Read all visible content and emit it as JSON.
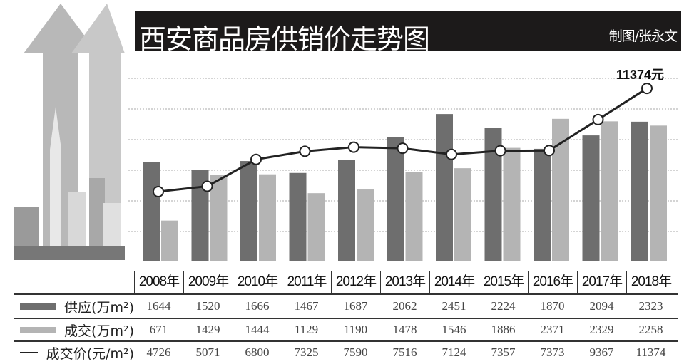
{
  "header": {
    "title": "西安商品房供销价走势图",
    "credit": "制图/张永文"
  },
  "chart_data": {
    "type": "bar",
    "title": "西安商品房供销价走势图",
    "categories": [
      "2008年",
      "2009年",
      "2010年",
      "2011年",
      "2012年",
      "2013年",
      "2014年",
      "2015年",
      "2016年",
      "2017年",
      "2018年"
    ],
    "series": [
      {
        "name": "供应(万m²)",
        "type": "bar",
        "color": "#6e6e6e",
        "values": [
          1644,
          1520,
          1666,
          1467,
          1687,
          2062,
          2451,
          2224,
          1870,
          2094,
          2323
        ]
      },
      {
        "name": "成交(万m²)",
        "type": "bar",
        "color": "#b4b4b4",
        "values": [
          671,
          1429,
          1444,
          1129,
          1190,
          1478,
          1546,
          1886,
          2371,
          2329,
          2258
        ]
      },
      {
        "name": "成交价(元/m²)",
        "type": "line",
        "color": "#222222",
        "values": [
          4726,
          5071,
          6800,
          7325,
          7590,
          7516,
          7124,
          7357,
          7373,
          9367,
          11374
        ]
      }
    ],
    "annotation": "11374元",
    "grid": true
  }
}
